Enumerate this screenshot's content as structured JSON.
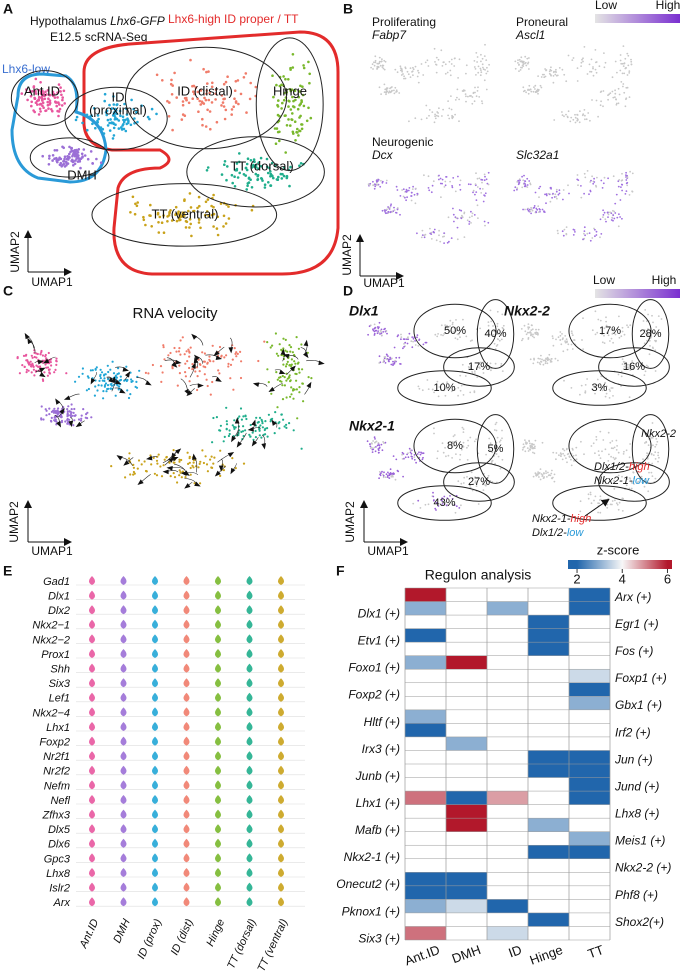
{
  "panel_a": {
    "letter": "A",
    "title": "Hypothalamus",
    "title_gene": "Lhx6-GFP",
    "subtitle": "E12.5 scRNA-Seq",
    "high_group": "Lhx6-high ID proper / TT",
    "low_group": "Lhx6-low",
    "clusters": [
      "Ant.ID",
      "DMH",
      [
        "ID",
        "(proximal)"
      ],
      "ID (distal)",
      "Hinge",
      "TT (dorsal)",
      "TT (ventral)"
    ],
    "x_axis": "UMAP1",
    "y_axis": "UMAP2"
  },
  "panel_b": {
    "letter": "B",
    "legend": {
      "low": "Low",
      "high": "High"
    },
    "maps": [
      {
        "label": "Proliferating",
        "gene": "Fabp7"
      },
      {
        "label": "Proneural",
        "gene": "Ascl1"
      },
      {
        "label": "Neurogenic",
        "gene": "Dcx"
      },
      {
        "gene": "Slc32a1"
      }
    ],
    "x_axis": "UMAP1",
    "y_axis": "UMAP2"
  },
  "panel_c": {
    "letter": "C",
    "title": "RNA velocity",
    "x_axis": "UMAP1",
    "y_axis": "UMAP2"
  },
  "panel_d": {
    "letter": "D",
    "legend": {
      "low": "Low",
      "high": "High"
    },
    "maps": [
      {
        "gene": "Dlx1",
        "id_distal": "50%",
        "hinge": "40%",
        "tt_dorsal": "17%",
        "tt_ventral": "10%"
      },
      {
        "gene": "Nkx2-2",
        "id_distal": "17%",
        "hinge": "28%",
        "tt_dorsal": "16%",
        "tt_ventral": "3%"
      },
      {
        "gene": "Nkx2-1",
        "id_distal": "8%",
        "hinge": "5%",
        "tt_dorsal": "27%",
        "tt_ventral": "43%"
      }
    ],
    "annotation": {
      "gene": "Nkx2-2",
      "upper": [
        [
          "Dlx1/2-",
          "high"
        ],
        [
          "Nkx2-1-",
          "low"
        ]
      ],
      "lower": [
        [
          "Nkx2-1-",
          "high"
        ],
        [
          "Dlx1/2-",
          "low"
        ]
      ]
    },
    "x_axis": "UMAP1",
    "y_axis": "UMAP2"
  },
  "panel_e": {
    "letter": "E",
    "genes": [
      "Gad1",
      "Dlx1",
      "Dlx2",
      "Nkx2−1",
      "Nkx2−2",
      "Prox1",
      "Shh",
      "Six3",
      "Lef1",
      "Nkx2−4",
      "Lhx1",
      "Foxp2",
      "Nr2f1",
      "Nr2f2",
      "Nefm",
      "Nefl",
      "Zfhx3",
      "Dlx5",
      "Dlx6",
      "Gpc3",
      "Lhx8",
      "Islr2",
      "Arx"
    ],
    "groups": [
      "Ant.ID",
      "DMH",
      "ID (prox)",
      "ID (dist)",
      "Hinge",
      "TT (dorsal)",
      "TT (ventral)"
    ],
    "colors": [
      "#e8569e",
      "#9b6fd6",
      "#22a6d6",
      "#f07c6a",
      "#79b82c",
      "#1fae8c",
      "#c9a21a"
    ]
  },
  "panel_f": {
    "letter": "F",
    "title": "Regulon analysis",
    "legend_title": "z-score",
    "zticks": [
      2,
      4,
      6
    ],
    "zlim": [
      1.6,
      6.2
    ],
    "columns": [
      "Ant.ID",
      "DMH",
      "ID",
      "Hinge",
      "TT"
    ],
    "rows": [
      {
        "name": "Arx (+)",
        "values": [
          6,
          null,
          null,
          null,
          2
        ]
      },
      {
        "name": "Dlx1 (+)",
        "values": [
          3,
          null,
          3,
          null,
          2
        ]
      },
      {
        "name": "Egr1 (+)",
        "values": [
          null,
          null,
          null,
          2,
          null
        ]
      },
      {
        "name": "Etv1 (+)",
        "values": [
          2,
          null,
          null,
          2,
          null
        ]
      },
      {
        "name": "Fos (+)",
        "values": [
          null,
          null,
          null,
          2,
          null
        ]
      },
      {
        "name": "Foxo1 (+)",
        "values": [
          3,
          6,
          null,
          null,
          null
        ]
      },
      {
        "name": "Foxp1 (+)",
        "values": [
          null,
          null,
          null,
          null,
          3.6
        ]
      },
      {
        "name": "Foxp2 (+)",
        "values": [
          null,
          null,
          null,
          null,
          2
        ]
      },
      {
        "name": "Gbx1 (+)",
        "values": [
          null,
          null,
          null,
          null,
          3
        ]
      },
      {
        "name": "Hltf (+)",
        "values": [
          3,
          null,
          null,
          null,
          null
        ]
      },
      {
        "name": "Irf2 (+)",
        "values": [
          2,
          null,
          null,
          null,
          null
        ]
      },
      {
        "name": "Irx3 (+)",
        "values": [
          null,
          3,
          null,
          null,
          null
        ]
      },
      {
        "name": "Jun (+)",
        "values": [
          null,
          null,
          null,
          2,
          2
        ]
      },
      {
        "name": "Junb (+)",
        "values": [
          null,
          null,
          null,
          2,
          2
        ]
      },
      {
        "name": "Jund (+)",
        "values": [
          null,
          null,
          null,
          null,
          2
        ]
      },
      {
        "name": "Lhx1 (+)",
        "values": [
          5.2,
          2,
          4.8,
          null,
          2
        ]
      },
      {
        "name": "Lhx8 (+)",
        "values": [
          null,
          6,
          null,
          null,
          null
        ]
      },
      {
        "name": "Mafb (+)",
        "values": [
          null,
          6,
          null,
          3,
          null
        ]
      },
      {
        "name": "Meis1 (+)",
        "values": [
          null,
          null,
          null,
          null,
          3
        ]
      },
      {
        "name": "Nkx2-1 (+)",
        "values": [
          null,
          null,
          null,
          2,
          2
        ]
      },
      {
        "name": "Nkx2-2 (+)",
        "values": [
          null,
          null,
          null,
          null,
          null
        ]
      },
      {
        "name": "Onecut2 (+)",
        "values": [
          2,
          2,
          null,
          null,
          null
        ]
      },
      {
        "name": "Phf8 (+)",
        "values": [
          2,
          2,
          null,
          null,
          null
        ]
      },
      {
        "name": "Pknox1 (+)",
        "values": [
          3,
          3.6,
          2,
          null,
          null
        ]
      },
      {
        "name": "Shox2(+)",
        "values": [
          null,
          null,
          null,
          2,
          null
        ]
      },
      {
        "name": "Six3 (+)",
        "values": [
          5.2,
          null,
          3.6,
          null,
          null
        ]
      }
    ]
  }
}
